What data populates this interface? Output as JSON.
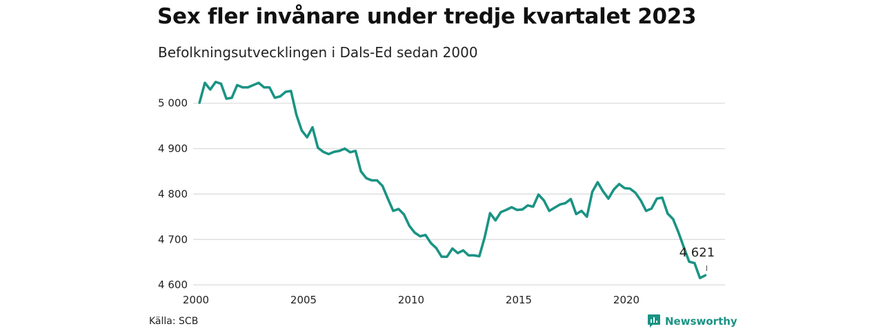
{
  "title": "Sex fler invånare under tredje kvartalet 2023",
  "subtitle": "Befolkningsutvecklingen i Dals-Ed sedan 2000",
  "source": "Källa: SCB",
  "brand": {
    "name": "Newsworthy",
    "icon": "newsworthy-logo-icon"
  },
  "colors": {
    "line": "#1a9384",
    "grid": "#d9d9d9",
    "brand": "#1a9384"
  },
  "chart_data": {
    "type": "line",
    "title": "Sex fler invånare under tredje kvartalet 2023",
    "subtitle": "Befolkningsutvecklingen i Dals-Ed sedan 2000",
    "xlabel": "",
    "ylabel": "",
    "x_ticks": [
      "2000",
      "2005",
      "2010",
      "2015",
      "2020"
    ],
    "y_ticks": [
      "4 600",
      "4 700",
      "4 800",
      "4 900",
      "5 000"
    ],
    "ylim": [
      4600,
      5050
    ],
    "xlim": [
      "2000-01",
      "2023-09"
    ],
    "grid": true,
    "last_value_label": "4 621",
    "x": [
      "2000-03",
      "2000-06",
      "2000-09",
      "2000-12",
      "2001-03",
      "2001-06",
      "2001-09",
      "2001-12",
      "2002-03",
      "2002-06",
      "2002-09",
      "2002-12",
      "2003-03",
      "2003-06",
      "2003-09",
      "2003-12",
      "2004-03",
      "2004-06",
      "2004-09",
      "2004-12",
      "2005-03",
      "2005-06",
      "2005-09",
      "2005-12",
      "2006-03",
      "2006-06",
      "2006-09",
      "2006-12",
      "2007-03",
      "2007-06",
      "2007-09",
      "2007-12",
      "2008-03",
      "2008-06",
      "2008-09",
      "2008-12",
      "2009-03",
      "2009-06",
      "2009-09",
      "2009-12",
      "2010-03",
      "2010-06",
      "2010-09",
      "2010-12",
      "2011-03",
      "2011-06",
      "2011-09",
      "2011-12",
      "2012-03",
      "2012-06",
      "2012-09",
      "2012-12",
      "2013-03",
      "2013-06",
      "2013-09",
      "2013-12",
      "2014-03",
      "2014-06",
      "2014-09",
      "2014-12",
      "2015-03",
      "2015-06",
      "2015-09",
      "2015-12",
      "2016-03",
      "2016-06",
      "2016-09",
      "2016-12",
      "2017-03",
      "2017-06",
      "2017-09",
      "2017-12",
      "2018-03",
      "2018-06",
      "2018-09",
      "2018-12",
      "2019-03",
      "2019-06",
      "2019-09",
      "2019-12",
      "2020-03",
      "2020-06",
      "2020-09",
      "2020-12",
      "2021-03",
      "2021-06",
      "2021-09",
      "2021-12",
      "2022-03",
      "2022-06",
      "2022-09",
      "2022-12",
      "2023-03",
      "2023-06",
      "2023-09"
    ],
    "series": [
      {
        "values": [
          5001,
          5045,
          5030,
          5047,
          5043,
          5010,
          5012,
          5040,
          5035,
          5035,
          5040,
          5045,
          5035,
          5035,
          5012,
          5015,
          5025,
          5027,
          4975,
          4940,
          4925,
          4947,
          4902,
          4893,
          4888,
          4893,
          4895,
          4900,
          4892,
          4895,
          4850,
          4835,
          4830,
          4830,
          4818,
          4790,
          4763,
          4767,
          4755,
          4730,
          4715,
          4707,
          4710,
          4692,
          4681,
          4662,
          4662,
          4680,
          4670,
          4676,
          4665,
          4665,
          4663,
          4705,
          4758,
          4742,
          4760,
          4765,
          4771,
          4765,
          4766,
          4775,
          4772,
          4799,
          4786,
          4763,
          4770,
          4777,
          4780,
          4789,
          4756,
          4763,
          4750,
          4805,
          4826,
          4806,
          4790,
          4810,
          4822,
          4813,
          4812,
          4803,
          4786,
          4763,
          4768,
          4790,
          4792,
          4757,
          4745,
          4716,
          4683,
          4651,
          4648,
          4615,
          4621
        ]
      }
    ]
  }
}
